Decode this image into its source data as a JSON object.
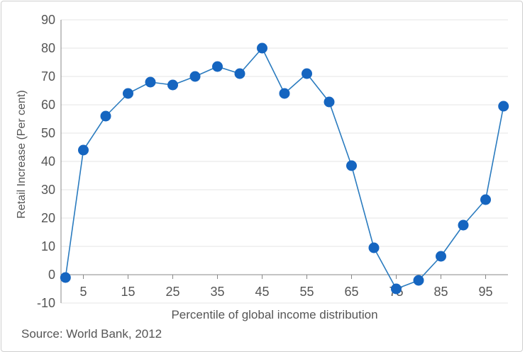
{
  "chart_data": {
    "type": "line",
    "xlabel": "Percentile of global income distribution",
    "ylabel": "Retail Increase (Per cent)",
    "xlim": [
      0,
      100
    ],
    "ylim": [
      -10,
      90
    ],
    "x_ticks": [
      5,
      15,
      25,
      35,
      45,
      55,
      65,
      75,
      85,
      95
    ],
    "y_ticks": [
      90,
      80,
      70,
      60,
      50,
      40,
      30,
      20,
      10,
      0,
      -10
    ],
    "grid": true,
    "colors": {
      "line": "#2a7bbf",
      "marker": "#1565c0",
      "grid": "#e6e6e6",
      "axis": "#888888",
      "text": "#555555"
    },
    "series": [
      {
        "x": [
          1,
          5,
          10,
          15,
          20,
          25,
          30,
          35,
          40,
          45,
          50,
          55,
          60,
          65,
          70,
          75,
          80,
          85,
          90,
          95,
          99,
          100
        ],
        "y": [
          -1,
          44,
          56,
          64,
          68,
          67,
          70,
          73.5,
          71,
          80,
          64,
          71,
          61,
          38.5,
          9.5,
          -5,
          -2,
          6.5,
          17.5,
          26.5,
          59.5,
          59.5
        ],
        "markers": [
          true,
          true,
          true,
          true,
          true,
          true,
          true,
          true,
          true,
          true,
          true,
          true,
          true,
          true,
          true,
          true,
          true,
          true,
          true,
          true,
          true,
          false
        ]
      }
    ]
  },
  "source": "Source: World Bank, 2012"
}
